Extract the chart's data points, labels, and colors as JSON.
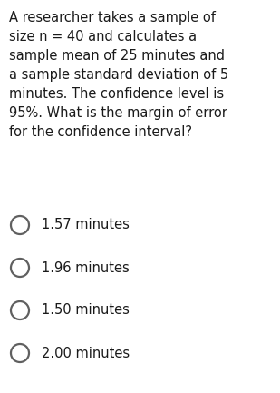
{
  "background_color": "#ffffff",
  "question_text": "A researcher takes a sample of\nsize n = 40 and calculates a\nsample mean of 25 minutes and\na sample standard deviation of 5\nminutes. The confidence level is\n95%. What is the margin of error\nfor the confidence interval?",
  "options": [
    "1.57 minutes",
    "1.96 minutes",
    "1.50 minutes",
    "2.00 minutes"
  ],
  "question_fontsize": 10.5,
  "option_fontsize": 10.5,
  "text_color": "#1a1a1a",
  "circle_color": "#606060",
  "circle_linewidth": 1.6,
  "fig_width": 3.09,
  "fig_height": 4.33,
  "dpi": 100
}
